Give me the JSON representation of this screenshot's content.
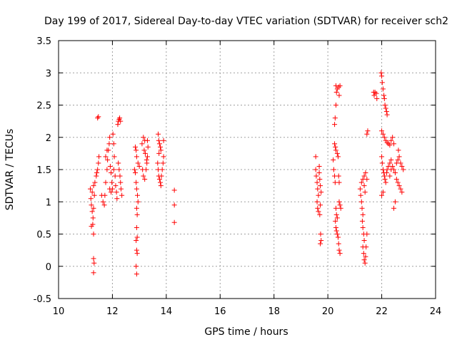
{
  "chart_data": {
    "type": "scatter",
    "title": "Day 199 of 2017, Sidereal Day-to-day VTEC variation (SDTVAR) for receiver sch2",
    "xlabel": "GPS time / hours",
    "ylabel": "SDTVAR / TECUs",
    "xlim": [
      10,
      24
    ],
    "ylim": [
      -0.5,
      3.5
    ],
    "xticks": [
      10,
      12,
      14,
      16,
      18,
      20,
      22,
      24
    ],
    "yticks": [
      -0.5,
      0,
      0.5,
      1,
      1.5,
      2,
      2.5,
      3,
      3.5
    ],
    "xtick_labels": [
      "10",
      "12",
      "14",
      "16",
      "18",
      "20",
      "22",
      "24"
    ],
    "ytick_labels": [
      "-0.5",
      "0",
      "0.5",
      "1",
      "1.5",
      "2",
      "2.5",
      "3",
      "3.5"
    ],
    "grid": true,
    "marker": "+",
    "marker_color": "#ff0000",
    "series": [
      {
        "name": "SDTVAR",
        "points": [
          [
            11.18,
            1.2
          ],
          [
            11.2,
            1.05
          ],
          [
            11.22,
            0.95
          ],
          [
            11.25,
            0.85
          ],
          [
            11.27,
            0.65
          ],
          [
            11.22,
            0.62
          ],
          [
            11.3,
            0.5
          ],
          [
            11.28,
            0.75
          ],
          [
            11.25,
            1.15
          ],
          [
            11.3,
            1.25
          ],
          [
            11.35,
            1.3
          ],
          [
            11.33,
            1.1
          ],
          [
            11.3,
            0.9
          ],
          [
            11.3,
            0.12
          ],
          [
            11.32,
            0.05
          ],
          [
            11.3,
            -0.1
          ],
          [
            11.4,
            1.4
          ],
          [
            11.45,
            1.5
          ],
          [
            11.48,
            1.6
          ],
          [
            11.42,
            1.45
          ],
          [
            11.5,
            1.7
          ],
          [
            11.45,
            2.3
          ],
          [
            11.48,
            2.32
          ],
          [
            11.6,
            1.1
          ],
          [
            11.65,
            1.0
          ],
          [
            11.7,
            0.95
          ],
          [
            11.72,
            1.1
          ],
          [
            11.75,
            1.3
          ],
          [
            11.8,
            1.5
          ],
          [
            11.82,
            1.65
          ],
          [
            11.85,
            1.8
          ],
          [
            11.88,
            1.9
          ],
          [
            11.9,
            2.0
          ],
          [
            11.92,
            1.55
          ],
          [
            11.95,
            1.45
          ],
          [
            11.98,
            1.3
          ],
          [
            12.0,
            1.2
          ],
          [
            12.02,
            2.05
          ],
          [
            12.05,
            1.9
          ],
          [
            12.07,
            1.7
          ],
          [
            12.1,
            1.4
          ],
          [
            12.12,
            1.25
          ],
          [
            12.15,
            1.15
          ],
          [
            12.17,
            1.05
          ],
          [
            12.2,
            2.2
          ],
          [
            12.22,
            2.25
          ],
          [
            12.25,
            2.28
          ],
          [
            12.27,
            2.3
          ],
          [
            12.3,
            2.25
          ],
          [
            12.22,
            1.6
          ],
          [
            12.25,
            1.5
          ],
          [
            12.28,
            1.4
          ],
          [
            12.3,
            1.3
          ],
          [
            12.32,
            1.2
          ],
          [
            12.35,
            1.1
          ],
          [
            11.9,
            1.2
          ],
          [
            11.95,
            1.15
          ],
          [
            11.75,
            1.7
          ],
          [
            11.8,
            1.8
          ],
          [
            12.05,
            1.5
          ],
          [
            12.85,
            1.85
          ],
          [
            12.88,
            1.8
          ],
          [
            12.9,
            1.7
          ],
          [
            12.82,
            1.5
          ],
          [
            12.85,
            1.45
          ],
          [
            12.88,
            1.3
          ],
          [
            12.9,
            1.2
          ],
          [
            12.93,
            1.1
          ],
          [
            12.95,
            1.0
          ],
          [
            12.9,
            0.9
          ],
          [
            12.92,
            0.8
          ],
          [
            12.9,
            0.6
          ],
          [
            12.92,
            0.45
          ],
          [
            12.88,
            0.4
          ],
          [
            12.9,
            0.25
          ],
          [
            12.92,
            0.2
          ],
          [
            12.88,
            0.0
          ],
          [
            12.9,
            -0.12
          ],
          [
            12.95,
            1.6
          ],
          [
            13.0,
            1.55
          ],
          [
            13.1,
            1.9
          ],
          [
            13.15,
            2.0
          ],
          [
            13.2,
            1.95
          ],
          [
            13.18,
            1.8
          ],
          [
            13.12,
            1.5
          ],
          [
            13.15,
            1.4
          ],
          [
            13.2,
            1.35
          ],
          [
            13.25,
            1.5
          ],
          [
            13.28,
            1.6
          ],
          [
            13.3,
            1.7
          ],
          [
            13.32,
            1.85
          ],
          [
            13.3,
            1.95
          ],
          [
            13.22,
            1.75
          ],
          [
            13.27,
            1.65
          ],
          [
            13.7,
            2.05
          ],
          [
            13.72,
            1.95
          ],
          [
            13.75,
            1.9
          ],
          [
            13.78,
            1.85
          ],
          [
            13.8,
            1.8
          ],
          [
            13.73,
            1.75
          ],
          [
            13.68,
            1.6
          ],
          [
            13.7,
            1.5
          ],
          [
            13.72,
            1.4
          ],
          [
            13.75,
            1.35
          ],
          [
            13.78,
            1.3
          ],
          [
            13.8,
            1.25
          ],
          [
            13.82,
            1.4
          ],
          [
            13.85,
            1.5
          ],
          [
            13.88,
            1.6
          ],
          [
            13.9,
            1.7
          ],
          [
            13.9,
            1.95
          ],
          [
            14.3,
            1.18
          ],
          [
            14.3,
            0.95
          ],
          [
            14.3,
            0.68
          ],
          [
            19.55,
            1.7
          ],
          [
            19.55,
            1.5
          ],
          [
            19.57,
            1.4
          ],
          [
            19.6,
            1.3
          ],
          [
            19.62,
            1.2
          ],
          [
            19.65,
            1.1
          ],
          [
            19.6,
            1.0
          ],
          [
            19.62,
            0.9
          ],
          [
            19.65,
            0.85
          ],
          [
            19.7,
            0.8
          ],
          [
            19.68,
            1.45
          ],
          [
            19.7,
            1.35
          ],
          [
            19.72,
            1.25
          ],
          [
            19.75,
            1.15
          ],
          [
            19.73,
            0.5
          ],
          [
            19.75,
            0.4
          ],
          [
            19.72,
            0.35
          ],
          [
            19.68,
            1.55
          ],
          [
            19.72,
            0.95
          ],
          [
            20.2,
            1.65
          ],
          [
            20.22,
            1.5
          ],
          [
            20.25,
            1.4
          ],
          [
            20.27,
            1.3
          ],
          [
            20.25,
            2.2
          ],
          [
            20.27,
            2.3
          ],
          [
            20.3,
            2.5
          ],
          [
            20.32,
            2.7
          ],
          [
            20.35,
            2.75
          ],
          [
            20.3,
            2.8
          ],
          [
            20.4,
            2.78
          ],
          [
            20.45,
            2.8
          ],
          [
            20.42,
            2.65
          ],
          [
            20.25,
            1.9
          ],
          [
            20.28,
            1.85
          ],
          [
            20.3,
            1.8
          ],
          [
            20.35,
            1.75
          ],
          [
            20.38,
            1.7
          ],
          [
            20.3,
            0.9
          ],
          [
            20.32,
            0.8
          ],
          [
            20.35,
            0.75
          ],
          [
            20.3,
            0.6
          ],
          [
            20.32,
            0.55
          ],
          [
            20.35,
            0.5
          ],
          [
            20.38,
            0.45
          ],
          [
            20.4,
            0.35
          ],
          [
            20.42,
            0.25
          ],
          [
            20.45,
            0.2
          ],
          [
            20.42,
            1.0
          ],
          [
            20.45,
            0.95
          ],
          [
            20.48,
            0.9
          ],
          [
            20.4,
            1.4
          ],
          [
            20.42,
            1.3
          ],
          [
            20.28,
            0.7
          ],
          [
            21.2,
            1.2
          ],
          [
            21.22,
            1.1
          ],
          [
            21.25,
            1.0
          ],
          [
            21.27,
            0.9
          ],
          [
            21.3,
            0.8
          ],
          [
            21.28,
            0.7
          ],
          [
            21.3,
            0.6
          ],
          [
            21.33,
            0.5
          ],
          [
            21.35,
            0.4
          ],
          [
            21.3,
            0.3
          ],
          [
            21.33,
            0.2
          ],
          [
            21.35,
            0.1
          ],
          [
            21.38,
            0.05
          ],
          [
            21.4,
            0.15
          ],
          [
            21.42,
            0.3
          ],
          [
            21.45,
            0.5
          ],
          [
            21.25,
            1.3
          ],
          [
            21.3,
            1.35
          ],
          [
            21.35,
            1.4
          ],
          [
            21.4,
            1.45
          ],
          [
            21.45,
            2.05
          ],
          [
            21.48,
            2.1
          ],
          [
            21.35,
            1.25
          ],
          [
            21.38,
            1.15
          ],
          [
            21.45,
            1.35
          ],
          [
            21.7,
            2.7
          ],
          [
            21.72,
            2.65
          ],
          [
            21.75,
            2.7
          ],
          [
            21.8,
            2.68
          ],
          [
            21.82,
            2.6
          ],
          [
            21.98,
            3.0
          ],
          [
            22.0,
            2.95
          ],
          [
            22.02,
            2.85
          ],
          [
            22.05,
            2.75
          ],
          [
            22.08,
            2.65
          ],
          [
            22.1,
            2.6
          ],
          [
            22.12,
            2.5
          ],
          [
            22.15,
            2.45
          ],
          [
            22.18,
            2.4
          ],
          [
            22.2,
            2.35
          ],
          [
            22.0,
            2.1
          ],
          [
            22.05,
            2.05
          ],
          [
            22.1,
            2.0
          ],
          [
            22.15,
            1.95
          ],
          [
            22.2,
            1.92
          ],
          [
            22.25,
            1.9
          ],
          [
            22.3,
            1.88
          ],
          [
            22.35,
            1.95
          ],
          [
            22.4,
            2.0
          ],
          [
            22.45,
            1.9
          ],
          [
            22.0,
            1.7
          ],
          [
            22.02,
            1.6
          ],
          [
            22.05,
            1.5
          ],
          [
            22.08,
            1.45
          ],
          [
            22.1,
            1.4
          ],
          [
            22.12,
            1.35
          ],
          [
            22.15,
            1.3
          ],
          [
            22.18,
            1.45
          ],
          [
            22.2,
            1.5
          ],
          [
            22.25,
            1.55
          ],
          [
            22.3,
            1.6
          ],
          [
            22.35,
            1.65
          ],
          [
            22.4,
            1.55
          ],
          [
            22.45,
            1.5
          ],
          [
            22.5,
            1.45
          ],
          [
            22.55,
            1.6
          ],
          [
            22.6,
            1.65
          ],
          [
            22.65,
            1.7
          ],
          [
            22.7,
            1.6
          ],
          [
            22.75,
            1.55
          ],
          [
            22.8,
            1.5
          ],
          [
            22.6,
            1.3
          ],
          [
            22.65,
            1.25
          ],
          [
            22.7,
            1.2
          ],
          [
            22.75,
            1.15
          ],
          [
            22.5,
            1.0
          ],
          [
            22.45,
            0.9
          ],
          [
            22.0,
            1.1
          ],
          [
            22.05,
            1.15
          ],
          [
            22.55,
            1.35
          ],
          [
            22.3,
            1.4
          ],
          [
            22.35,
            1.5
          ],
          [
            22.62,
            1.8
          ]
        ]
      }
    ]
  }
}
